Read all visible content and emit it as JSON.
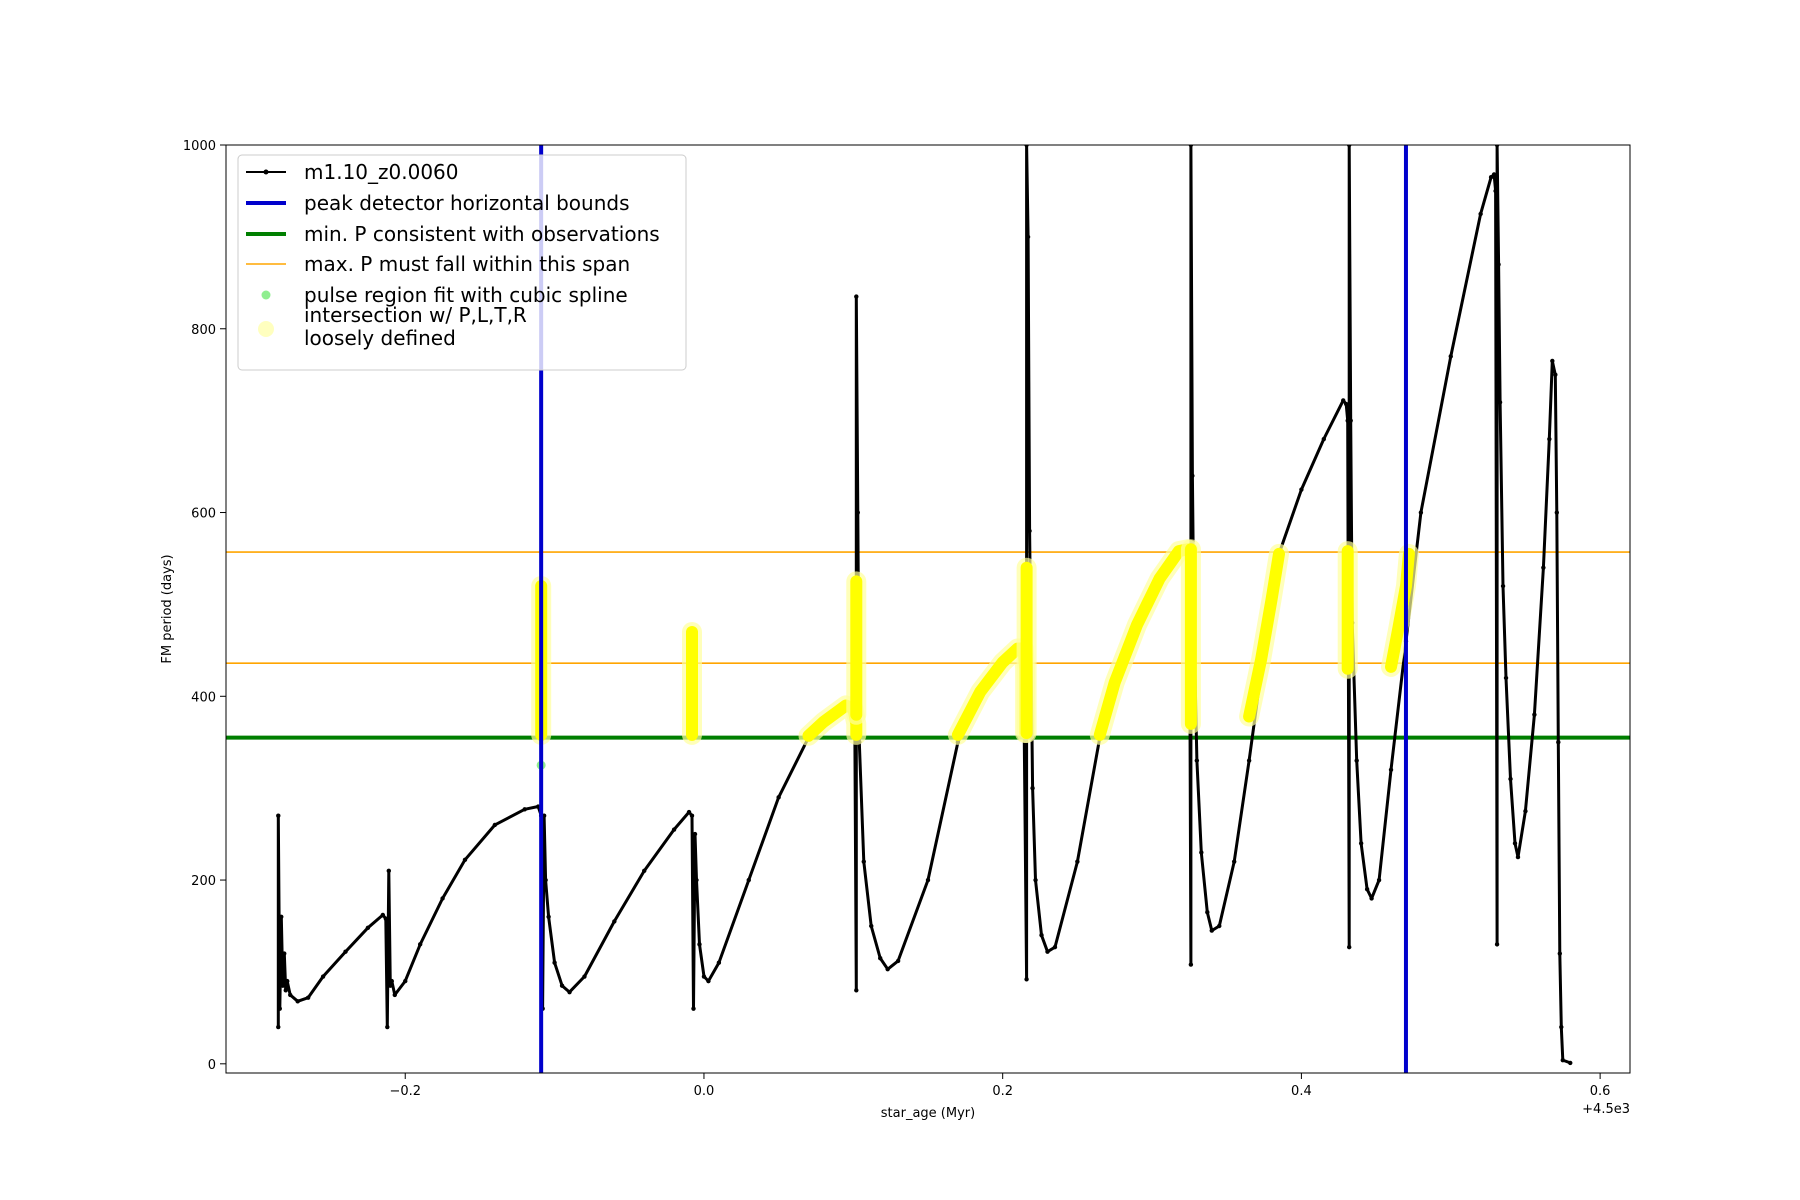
{
  "chart_data": {
    "type": "line",
    "xlabel": "star_age (Myr)",
    "ylabel": "FM period (days)",
    "x_offset_label": "+4.5e3",
    "xlim": [
      -0.32,
      0.62
    ],
    "ylim": [
      -10,
      1000
    ],
    "x_ticks": [
      -0.2,
      0.0,
      0.2,
      0.4,
      0.6
    ],
    "x_tick_labels": [
      "−0.2",
      "0.0",
      "0.2",
      "0.4",
      "0.6"
    ],
    "y_ticks": [
      0,
      200,
      400,
      600,
      800,
      1000
    ],
    "y_tick_labels": [
      "0",
      "200",
      "400",
      "600",
      "800",
      "1000"
    ],
    "grid": false,
    "legend_position": "upper-left",
    "legend": [
      {
        "label": "m1.10_z0.0060",
        "style": "line-marker",
        "color": "#000000"
      },
      {
        "label": "peak detector horizontal bounds",
        "style": "thick-line",
        "color": "#0000cc"
      },
      {
        "label": "min. P consistent with observations",
        "style": "thick-line",
        "color": "#007f00"
      },
      {
        "label": "max. P must fall within this span",
        "style": "thin-line",
        "color": "#ffa500"
      },
      {
        "label": "pulse region fit with cubic spline",
        "style": "dot",
        "color": "#90ee90"
      },
      {
        "label": "intersection w/ P,L,T,R\nloosely defined",
        "style": "big-dot",
        "color": "#ffffbf"
      }
    ],
    "vertical_lines": {
      "name": "peak detector horizontal bounds",
      "color": "#0000cc",
      "x": [
        -0.109,
        0.47
      ]
    },
    "horizontal_lines": [
      {
        "name": "min. P consistent with observations",
        "color": "#007f00",
        "y": 355,
        "thick": true
      },
      {
        "name": "max. P must fall within this span",
        "color": "#ffa500",
        "y": 436,
        "thick": false
      },
      {
        "name": "max. P must fall within this span",
        "color": "#ffa500",
        "y": 557,
        "thick": false
      }
    ],
    "series": [
      {
        "name": "m1.10_z0.0060",
        "color": "#000000",
        "points": [
          [
            -0.285,
            40
          ],
          [
            -0.285,
            270
          ],
          [
            -0.284,
            60
          ],
          [
            -0.283,
            160
          ],
          [
            -0.282,
            85
          ],
          [
            -0.281,
            120
          ],
          [
            -0.28,
            80
          ],
          [
            -0.279,
            90
          ],
          [
            -0.277,
            75
          ],
          [
            -0.272,
            68
          ],
          [
            -0.265,
            72
          ],
          [
            -0.255,
            95
          ],
          [
            -0.24,
            122
          ],
          [
            -0.225,
            148
          ],
          [
            -0.215,
            162
          ],
          [
            -0.213,
            158
          ],
          [
            -0.212,
            40
          ],
          [
            -0.211,
            210
          ],
          [
            -0.21,
            85
          ],
          [
            -0.209,
            90
          ],
          [
            -0.207,
            75
          ],
          [
            -0.2,
            90
          ],
          [
            -0.19,
            130
          ],
          [
            -0.175,
            180
          ],
          [
            -0.16,
            222
          ],
          [
            -0.14,
            260
          ],
          [
            -0.12,
            277
          ],
          [
            -0.111,
            280
          ],
          [
            -0.109,
            270
          ],
          [
            -0.108,
            60
          ],
          [
            -0.107,
            270
          ],
          [
            -0.106,
            200
          ],
          [
            -0.104,
            160
          ],
          [
            -0.1,
            110
          ],
          [
            -0.095,
            85
          ],
          [
            -0.09,
            78
          ],
          [
            -0.08,
            95
          ],
          [
            -0.06,
            155
          ],
          [
            -0.04,
            210
          ],
          [
            -0.02,
            255
          ],
          [
            -0.01,
            274
          ],
          [
            -0.008,
            270
          ],
          [
            -0.007,
            60
          ],
          [
            -0.006,
            250
          ],
          [
            -0.005,
            200
          ],
          [
            -0.003,
            130
          ],
          [
            0.0,
            95
          ],
          [
            0.003,
            90
          ],
          [
            0.01,
            110
          ],
          [
            0.03,
            200
          ],
          [
            0.05,
            290
          ],
          [
            0.07,
            355
          ],
          [
            0.08,
            370
          ],
          [
            0.095,
            390
          ],
          [
            0.1,
            385
          ],
          [
            0.101,
            370
          ],
          [
            0.102,
            80
          ],
          [
            0.102,
            835
          ],
          [
            0.103,
            600
          ],
          [
            0.104,
            350
          ],
          [
            0.107,
            220
          ],
          [
            0.112,
            150
          ],
          [
            0.118,
            115
          ],
          [
            0.123,
            103
          ],
          [
            0.13,
            112
          ],
          [
            0.15,
            200
          ],
          [
            0.17,
            350
          ],
          [
            0.19,
            418
          ],
          [
            0.21,
            455
          ],
          [
            0.213,
            455
          ],
          [
            0.214,
            430
          ],
          [
            0.216,
            92
          ],
          [
            0.216,
            1000
          ],
          [
            0.217,
            900
          ],
          [
            0.218,
            580
          ],
          [
            0.22,
            300
          ],
          [
            0.222,
            200
          ],
          [
            0.226,
            140
          ],
          [
            0.23,
            122
          ],
          [
            0.235,
            127
          ],
          [
            0.25,
            220
          ],
          [
            0.265,
            355
          ],
          [
            0.285,
            455
          ],
          [
            0.305,
            530
          ],
          [
            0.318,
            560
          ],
          [
            0.323,
            562
          ],
          [
            0.325,
            555
          ],
          [
            0.326,
            108
          ],
          [
            0.326,
            1000
          ],
          [
            0.327,
            640
          ],
          [
            0.328,
            480
          ],
          [
            0.33,
            330
          ],
          [
            0.333,
            230
          ],
          [
            0.337,
            165
          ],
          [
            0.34,
            145
          ],
          [
            0.345,
            150
          ],
          [
            0.355,
            220
          ],
          [
            0.365,
            330
          ],
          [
            0.375,
            450
          ],
          [
            0.385,
            555
          ],
          [
            0.4,
            625
          ],
          [
            0.415,
            680
          ],
          [
            0.428,
            722
          ],
          [
            0.43,
            718
          ],
          [
            0.431,
            700
          ],
          [
            0.432,
            127
          ],
          [
            0.432,
            1000
          ],
          [
            0.433,
            700
          ],
          [
            0.434,
            480
          ],
          [
            0.437,
            330
          ],
          [
            0.44,
            240
          ],
          [
            0.444,
            190
          ],
          [
            0.447,
            180
          ],
          [
            0.452,
            200
          ],
          [
            0.46,
            320
          ],
          [
            0.47,
            460
          ],
          [
            0.48,
            600
          ],
          [
            0.5,
            770
          ],
          [
            0.52,
            925
          ],
          [
            0.527,
            965
          ],
          [
            0.529,
            968
          ],
          [
            0.53,
            950
          ],
          [
            0.531,
            130
          ],
          [
            0.531,
            1000
          ],
          [
            0.532,
            870
          ],
          [
            0.533,
            720
          ],
          [
            0.535,
            520
          ],
          [
            0.537,
            420
          ],
          [
            0.54,
            310
          ],
          [
            0.543,
            240
          ],
          [
            0.545,
            225
          ],
          [
            0.55,
            275
          ],
          [
            0.556,
            380
          ],
          [
            0.562,
            540
          ],
          [
            0.566,
            680
          ],
          [
            0.568,
            765
          ],
          [
            0.57,
            750
          ],
          [
            0.571,
            600
          ],
          [
            0.572,
            350
          ],
          [
            0.573,
            120
          ],
          [
            0.574,
            40
          ],
          [
            0.575,
            4
          ],
          [
            0.58,
            1
          ]
        ]
      },
      {
        "name": "pulse region fit with cubic spline",
        "color": "#90ee90",
        "points": [
          [
            -0.109,
            325
          ]
        ]
      },
      {
        "name": "intersection w/ P,L,T,R loosely defined",
        "color": "#ffff00",
        "segments": [
          [
            [
              -0.109,
              358
            ],
            [
              -0.109,
              520
            ]
          ],
          [
            [
              -0.008,
              358
            ],
            [
              -0.008,
              470
            ]
          ],
          [
            [
              0.07,
              357
            ],
            [
              0.08,
              372
            ],
            [
              0.095,
              390
            ],
            [
              0.1,
              387
            ],
            [
              0.102,
              370
            ],
            [
              0.102,
              358
            ]
          ],
          [
            [
              0.102,
              380
            ],
            [
              0.102,
              525
            ]
          ],
          [
            [
              0.17,
              358
            ],
            [
              0.185,
              405
            ],
            [
              0.2,
              437
            ],
            [
              0.21,
              452
            ],
            [
              0.214,
              452
            ],
            [
              0.215,
              430
            ],
            [
              0.215,
              360
            ]
          ],
          [
            [
              0.216,
              360
            ],
            [
              0.216,
              540
            ]
          ],
          [
            [
              0.265,
              358
            ],
            [
              0.275,
              415
            ],
            [
              0.29,
              478
            ],
            [
              0.305,
              528
            ],
            [
              0.318,
              558
            ],
            [
              0.324,
              560
            ]
          ],
          [
            [
              0.326,
              370
            ],
            [
              0.326,
              560
            ]
          ],
          [
            [
              0.365,
              378
            ],
            [
              0.373,
              440
            ],
            [
              0.38,
              505
            ],
            [
              0.385,
              555
            ]
          ],
          [
            [
              0.431,
              430
            ],
            [
              0.431,
              558
            ]
          ],
          [
            [
              0.46,
              432
            ],
            [
              0.465,
              475
            ],
            [
              0.47,
              520
            ],
            [
              0.472,
              555
            ]
          ]
        ]
      }
    ]
  }
}
